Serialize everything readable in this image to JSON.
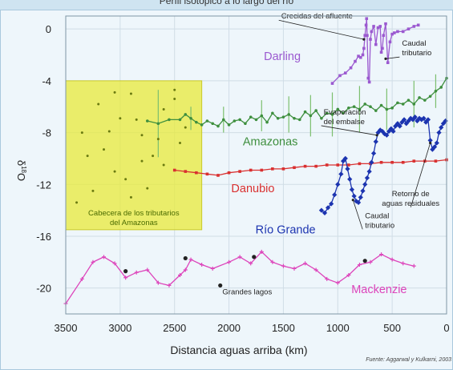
{
  "header": {
    "title": "Perfil isotópico a lo largo del río"
  },
  "source": "Fuente: Aggarwal y Kulkarni, 2003",
  "chart_data": {
    "type": "line",
    "title": "",
    "xlabel": "Distancia aguas arriba (km)",
    "ylabel_main": "δ",
    "ylabel_sup": "18",
    "ylabel_end": "O",
    "xlim": [
      3500,
      0
    ],
    "ylim": [
      -22,
      1
    ],
    "grid": true,
    "x_ticks": [
      3500,
      3000,
      2500,
      2000,
      1500,
      1000,
      500,
      0
    ],
    "y_ticks": [
      0,
      -4,
      -8,
      -12,
      -16,
      -20
    ],
    "colors": {
      "darling": "#9b59d0",
      "amazonas": "#3e8f3e",
      "danubio": "#d93030",
      "rio_grande": "#1c34b0",
      "mackenzie": "#dd44bb",
      "highlight": "#e8ea3a",
      "points": "#222222"
    },
    "highlight_box": {
      "x_range": [
        3500,
        2250
      ],
      "y_range": [
        -15.5,
        -4
      ],
      "label_line1": "Cabecera de los tributarios",
      "label_line2": "del Amazonas"
    },
    "series": [
      {
        "name": "Darling",
        "key": "darling",
        "marker": "square",
        "x": [
          1050,
          980,
          930,
          880,
          840,
          810,
          790,
          770,
          760,
          750,
          740,
          735,
          730,
          720,
          710,
          700,
          690,
          670,
          650,
          630,
          610,
          600,
          590,
          580,
          560,
          540,
          520,
          500,
          480,
          450,
          400,
          350,
          300,
          260
        ],
        "y": [
          -4.2,
          -3.6,
          -3.4,
          -3.0,
          -2.5,
          -2.1,
          -2.2,
          -2.0,
          -1.5,
          -0.5,
          0.3,
          0.8,
          -0.5,
          -3.8,
          -4.1,
          -0.8,
          -0.2,
          0.2,
          -1.2,
          0.1,
          0.2,
          -1.8,
          -1.5,
          -0.5,
          0.4,
          -2.6,
          -1.0,
          -0.4,
          -0.3,
          -0.2,
          -0.2,
          0.0,
          0.2,
          0.3
        ]
      },
      {
        "name": "Amazonas",
        "key": "amazonas",
        "marker": "circle",
        "x": [
          2750,
          2650,
          2550,
          2450,
          2400,
          2350,
          2300,
          2250,
          2200,
          2150,
          2100,
          2050,
          2000,
          1950,
          1900,
          1850,
          1800,
          1750,
          1700,
          1650,
          1600,
          1550,
          1500,
          1450,
          1400,
          1350,
          1300,
          1250,
          1200,
          1150,
          1100,
          1050,
          1000,
          950,
          900,
          850,
          800,
          750,
          700,
          650,
          600,
          550,
          500,
          450,
          400,
          350,
          300,
          250,
          200,
          150,
          100,
          50,
          0
        ],
        "y": [
          -7.1,
          -7.3,
          -7.0,
          -7.0,
          -6.6,
          -6.9,
          -7.2,
          -7.4,
          -7.1,
          -7.3,
          -7.5,
          -7.0,
          -7.4,
          -7.1,
          -7.0,
          -7.3,
          -6.8,
          -7.0,
          -6.7,
          -7.2,
          -6.5,
          -6.9,
          -6.8,
          -6.6,
          -6.9,
          -7.0,
          -6.4,
          -6.7,
          -6.3,
          -6.9,
          -6.5,
          -6.6,
          -6.2,
          -6.5,
          -6.1,
          -6.0,
          -6.2,
          -5.8,
          -6.0,
          -6.3,
          -5.9,
          -6.2,
          -6.1,
          -5.7,
          -5.8,
          -5.5,
          -5.8,
          -5.3,
          -5.5,
          -5.2,
          -4.8,
          -4.5,
          -3.8
        ]
      },
      {
        "name": "Danubio",
        "key": "danubio",
        "marker": "square",
        "x": [
          2500,
          2400,
          2300,
          2200,
          2100,
          2000,
          1900,
          1800,
          1700,
          1600,
          1500,
          1400,
          1300,
          1200,
          1100,
          1000,
          900,
          800,
          700,
          600,
          500,
          400,
          300,
          200,
          100,
          0
        ],
        "y": [
          -10.9,
          -11.0,
          -11.1,
          -11.2,
          -11.3,
          -11.1,
          -11.0,
          -10.9,
          -10.9,
          -10.8,
          -10.8,
          -10.7,
          -10.6,
          -10.6,
          -10.5,
          -10.5,
          -10.5,
          -10.4,
          -10.4,
          -10.3,
          -10.3,
          -10.3,
          -10.2,
          -10.2,
          -10.2,
          -10.1
        ]
      },
      {
        "name": "Río Grande",
        "key": "rio_grande",
        "marker": "diamond",
        "x": [
          1150,
          1120,
          1090,
          1060,
          1030,
          1000,
          970,
          950,
          930,
          910,
          890,
          870,
          850,
          830,
          810,
          790,
          770,
          750,
          730,
          710,
          690,
          670,
          650,
          630,
          610,
          590,
          570,
          550,
          530,
          510,
          490,
          470,
          450,
          430,
          410,
          390,
          370,
          350,
          330,
          310,
          290,
          270,
          250,
          230,
          210,
          190,
          170,
          150,
          130,
          110,
          90,
          70,
          50,
          30,
          10
        ],
        "y": [
          -14.0,
          -14.2,
          -13.8,
          -13.5,
          -12.8,
          -12.0,
          -11.2,
          -10.2,
          -10.0,
          -10.8,
          -11.6,
          -12.4,
          -12.9,
          -13.3,
          -13.4,
          -13.0,
          -12.5,
          -12.0,
          -11.5,
          -11.0,
          -10.3,
          -9.6,
          -8.7,
          -8.0,
          -7.8,
          -7.9,
          -8.1,
          -8.2,
          -7.9,
          -7.7,
          -7.9,
          -7.5,
          -7.3,
          -7.5,
          -7.2,
          -7.0,
          -7.3,
          -7.1,
          -6.9,
          -7.0,
          -6.8,
          -7.1,
          -6.9,
          -7.0,
          -6.9,
          -7.2,
          -7.0,
          -8.6,
          -9.3,
          -9.1,
          -8.8,
          -8.0,
          -7.6,
          -7.3,
          -7.1
        ]
      },
      {
        "name": "Mackenzie",
        "key": "mackenzie",
        "marker": "plus",
        "x": [
          3500,
          3350,
          3250,
          3150,
          3050,
          2950,
          2850,
          2750,
          2650,
          2550,
          2450,
          2400,
          2350,
          2250,
          2150,
          2000,
          1900,
          1800,
          1700,
          1600,
          1500,
          1400,
          1300,
          1200,
          1100,
          1000,
          900,
          800,
          700,
          600,
          500,
          400,
          300
        ],
        "y": [
          -21.2,
          -19.3,
          -18.0,
          -17.6,
          -18.1,
          -19.2,
          -18.8,
          -18.6,
          -19.6,
          -19.8,
          -19.0,
          -18.6,
          -17.8,
          -18.2,
          -18.5,
          -18.0,
          -17.6,
          -18.1,
          -17.2,
          -18.0,
          -18.3,
          -18.5,
          -18.1,
          -18.6,
          -19.3,
          -19.6,
          -19.0,
          -18.2,
          -18.0,
          -17.4,
          -17.8,
          -18.1,
          -18.3
        ]
      }
    ],
    "error_bars": {
      "key": "amazonas",
      "x": [
        2650,
        2350,
        2050,
        1700,
        1450,
        1250,
        1050,
        800,
        550,
        300,
        100
      ],
      "half": [
        2.6,
        0.9,
        1.0,
        1.2,
        1.4,
        1.6,
        1.7,
        1.8,
        1.6,
        1.8,
        1.3
      ]
    },
    "scatter_points": {
      "x": [
        3350,
        3200,
        3150,
        3100,
        3050,
        2900,
        2850,
        2800,
        2750,
        2700,
        2650,
        2600,
        2500,
        2450,
        2400,
        3300,
        3000,
        2950,
        3250,
        2900,
        2800,
        2600,
        2500,
        3400,
        3050
      ],
      "y": [
        -8.0,
        -5.8,
        -9.3,
        -7.9,
        -11.0,
        -5.0,
        -7.0,
        -8.2,
        -12.3,
        -9.8,
        -8.5,
        -6.2,
        -5.4,
        -8.8,
        -7.6,
        -9.8,
        -6.9,
        -11.6,
        -12.5,
        -13.0,
        -10.2,
        -10.5,
        -4.7,
        -13.4,
        -4.9
      ]
    },
    "marker_points": {
      "x": [
        2950,
        2400,
        2080,
        1770,
        750
      ],
      "y": [
        -18.7,
        -17.7,
        -19.8,
        -17.6,
        -17.9
      ]
    },
    "series_labels": {
      "darling": {
        "text": "Darling",
        "x": 1510,
        "y": -2.4
      },
      "amazonas": {
        "text": "Amazonas",
        "x": 1620,
        "y": -9.0
      },
      "danubio": {
        "text": "Danubio",
        "x": 1780,
        "y": -12.6
      },
      "rio_grande": {
        "text": "Río Grande",
        "x": 1480,
        "y": -15.8
      },
      "mackenzie": {
        "text": "Mackenzie",
        "x": 620,
        "y": -20.4
      }
    },
    "annotations": [
      {
        "lines": [
          "Crecidas del afluente"
        ],
        "x": 1520,
        "y": 0.8,
        "anchor": "start",
        "arrow_to": [
          760,
          -0.8
        ]
      },
      {
        "lines": [
          "Caudal",
          "tributario"
        ],
        "x": 410,
        "y": -1.3,
        "anchor": "start",
        "arrow_to": [
          560,
          -2.3
        ]
      },
      {
        "lines": [
          "Evaporación",
          "del embalse"
        ],
        "x": 1130,
        "y": -6.6,
        "anchor": "start",
        "arrow_to": [
          640,
          -8.2
        ]
      },
      {
        "lines": [
          "Retorno de",
          "aguas residuales"
        ],
        "x": 330,
        "y": -12.9,
        "anchor": "middle",
        "arrow_to": [
          150,
          -8.8
        ]
      },
      {
        "lines": [
          "Caudal",
          "tributario"
        ],
        "x": 750,
        "y": -14.6,
        "anchor": "start",
        "arrow_to": [
          860,
          -13.2
        ]
      },
      {
        "lines": [
          "Grandes lagos"
        ],
        "x": 2060,
        "y": -20.5,
        "anchor": "start",
        "arrow_to": null
      }
    ]
  }
}
